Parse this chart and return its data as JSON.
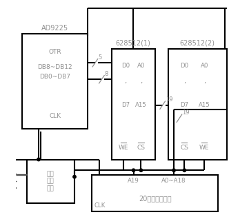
{
  "figsize": [
    3.61,
    3.18
  ],
  "dpi": 100,
  "bg": "#ffffff",
  "lc": "#000000",
  "tc": "#909090",
  "lw": 1.5,
  "boxes": {
    "ad9225": [
      0.03,
      0.41,
      0.3,
      0.44
    ],
    "logic": [
      0.05,
      0.07,
      0.22,
      0.2
    ],
    "mem1": [
      0.44,
      0.27,
      0.2,
      0.51
    ],
    "mem2": [
      0.7,
      0.27,
      0.27,
      0.51
    ],
    "addr": [
      0.35,
      0.03,
      0.58,
      0.17
    ]
  },
  "labels": {
    "ad9225_title": "AD9225",
    "ad9225_l1": "OTR",
    "ad9225_l2": "DB8~DB12",
    "ad9225_l3": "DB0~DB7",
    "ad9225_l4": "CLK",
    "logic_text": "逻辑\n控制\n电路",
    "mem1_title": "628512(1)",
    "mem1_d0": "D0",
    "mem1_d7": "D7",
    "mem1_a0": "A0",
    "mem1_a15": "A15",
    "mem1_we": "WE",
    "mem1_cs": "CS",
    "mem2_title": "628512(2)",
    "mem2_d0": "D0",
    "mem2_d7": "D7",
    "mem2_a0": "A0",
    "mem2_a15": "A15",
    "mem2_cs": "CS",
    "mem2_we": "WE",
    "addr_title": "20位地址发生器",
    "addr_a19": "A19",
    "addr_a018": "A0~A18",
    "addr_clk": "CLK",
    "num5": "5",
    "num8": "8",
    "num19_m1": "19",
    "num19_m2": "19"
  }
}
